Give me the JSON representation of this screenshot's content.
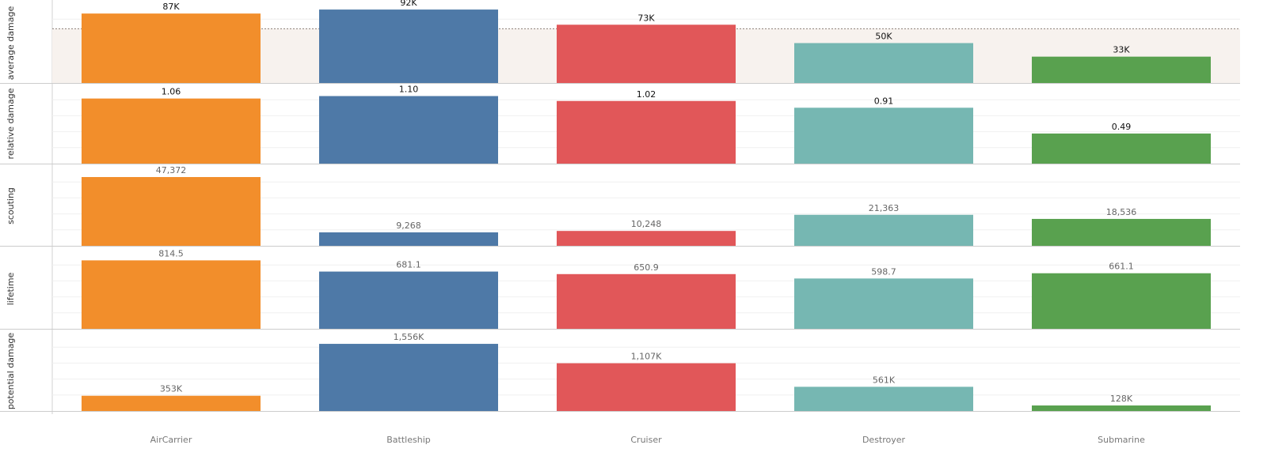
{
  "chart_data": {
    "type": "bar",
    "layout": "small-multiples",
    "categories": [
      "AirCarrier",
      "Battleship",
      "Cruiser",
      "Destroyer",
      "Submarine"
    ],
    "colors": [
      "#f28e2b",
      "#4e79a7",
      "#e15759",
      "#76b7b2",
      "#59a14f"
    ],
    "grid": true,
    "panels": [
      {
        "name": "average damage",
        "values": [
          87,
          92,
          73,
          50,
          33
        ],
        "labels": [
          "87K",
          "92K",
          "73K",
          "50K",
          "33K"
        ],
        "ylim": [
          0,
          100
        ],
        "label_style": "dark",
        "reference_line": 68,
        "reference_band": [
          0,
          68
        ]
      },
      {
        "name": "relative damage",
        "values": [
          1.06,
          1.1,
          1.02,
          0.91,
          0.49
        ],
        "labels": [
          "1.06",
          "1.10",
          "1.02",
          "0.91",
          "0.49"
        ],
        "ylim": [
          0,
          1.3
        ],
        "label_style": "dark"
      },
      {
        "name": "scouting",
        "values": [
          47372,
          9268,
          10248,
          21363,
          18536
        ],
        "labels": [
          "47,372",
          "9,268",
          "10,248",
          "21,363",
          "18,536"
        ],
        "ylim": [
          0,
          55000
        ],
        "label_style": "light"
      },
      {
        "name": "lifetime",
        "values": [
          814.5,
          681.1,
          650.9,
          598.7,
          661.1
        ],
        "labels": [
          "814.5",
          "681.1",
          "650.9",
          "598.7",
          "661.1"
        ],
        "ylim": [
          0,
          950
        ],
        "label_style": "light"
      },
      {
        "name": "potential damage",
        "values": [
          353,
          1556,
          1107,
          561,
          128
        ],
        "labels": [
          "353K",
          "1,556K",
          "1,107K",
          "561K",
          "128K"
        ],
        "ylim": [
          0,
          1850
        ],
        "label_style": "light"
      }
    ]
  }
}
